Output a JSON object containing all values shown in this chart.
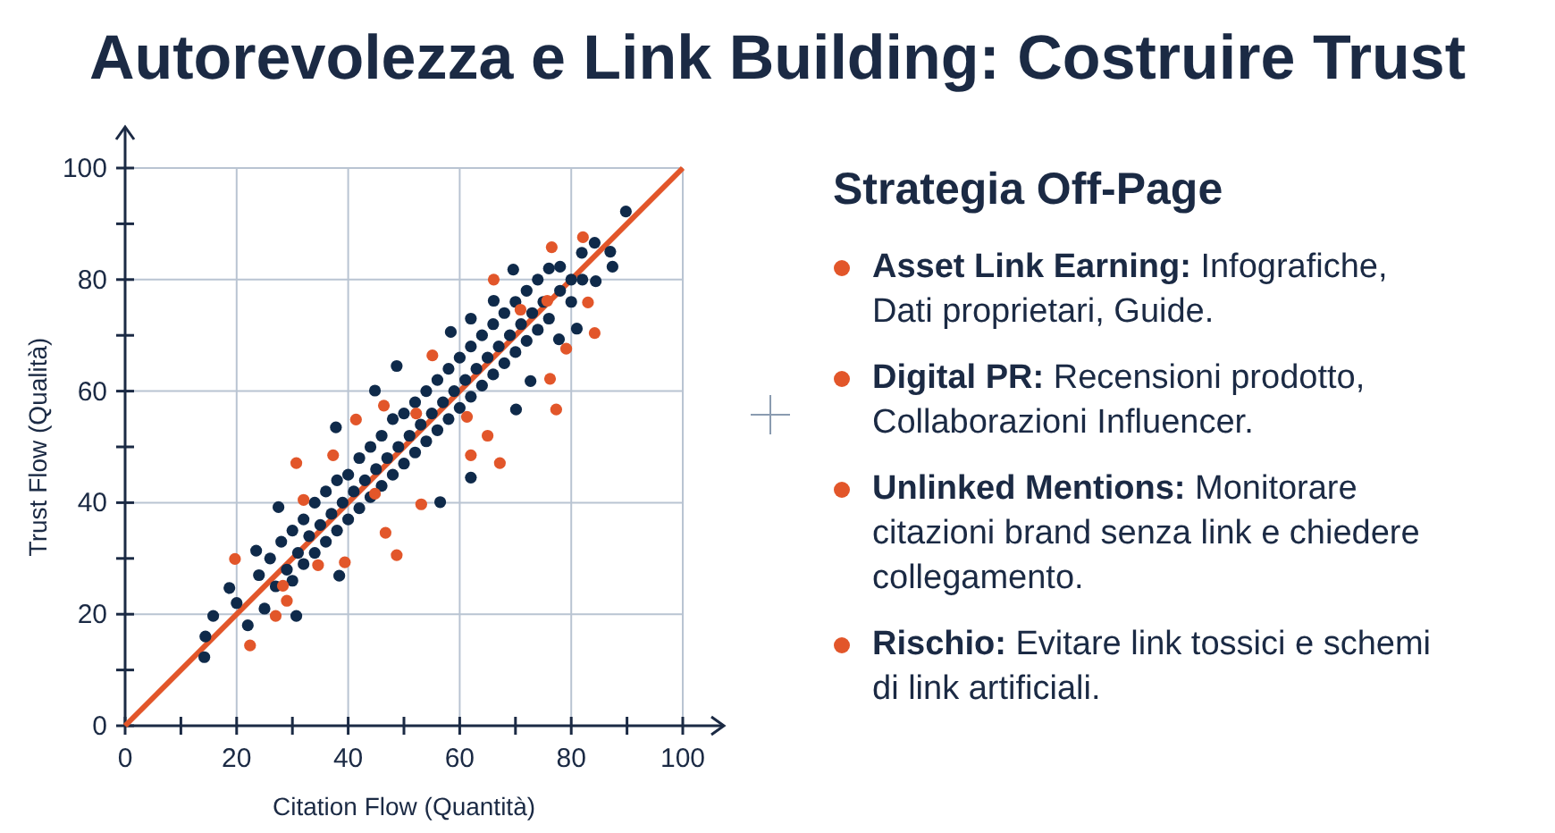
{
  "chart_data": [
    {
      "type": "scatter",
      "title": "Autorevolezza e Link Building: Costruire Trust",
      "xlabel": "Citation Flow (Quantità)",
      "ylabel": "Trust Flow (Qualità)",
      "xlim": [
        0,
        100
      ],
      "ylim": [
        0,
        100
      ],
      "xticks": [
        0,
        {
          "value": 10,
          "label": null
        },
        20,
        {
          "value": 30,
          "label": null
        },
        40,
        {
          "value": 50,
          "label": null
        },
        60,
        {
          "value": 70,
          "label": null
        },
        80,
        {
          "value": 90,
          "label": null
        },
        100
      ],
      "yticks": [
        0,
        {
          "value": 10,
          "label": null
        },
        20,
        {
          "value": 30,
          "label": null
        },
        40,
        {
          "value": 50,
          "label": null
        },
        60,
        {
          "value": 70,
          "label": null
        },
        80,
        {
          "value": 90,
          "label": null
        },
        100
      ],
      "grid": true,
      "series": [
        {
          "color": "#0f2a4a",
          "marker": "circle",
          "x": [
            89.8,
            87,
            87.4,
            81.9,
            84.2,
            84.4,
            81,
            69.6,
            66.1,
            62,
            58.4,
            48.7,
            44.8,
            37.8,
            27.5,
            23.5,
            18.7,
            15.8,
            14.2,
            14.4,
            30.7,
            38.4,
            56.5,
            62,
            70.1,
            72.7,
            77.8,
            78,
            20,
            22,
            24,
            25,
            26,
            27,
            28,
            29,
            30,
            30,
            31,
            32,
            32,
            33,
            34,
            34,
            35,
            36,
            36,
            37,
            38,
            38,
            39,
            40,
            40,
            41,
            42,
            42,
            43,
            44,
            44,
            45,
            46,
            46,
            47,
            48,
            48,
            49,
            50,
            50,
            51,
            52,
            52,
            53,
            54,
            54,
            55,
            56,
            56,
            57,
            58,
            58,
            59,
            60,
            60,
            61,
            62,
            62,
            63,
            64,
            64,
            65,
            66,
            66,
            67,
            68,
            68,
            69,
            70,
            70,
            71,
            72,
            72,
            73,
            74,
            74,
            75,
            76,
            76,
            78,
            80,
            80,
            82
          ],
          "values": [
            92.2,
            85,
            82.3,
            84.8,
            86.6,
            79.7,
            71.2,
            81.8,
            76.2,
            73,
            70.6,
            64.5,
            60.1,
            53.5,
            39.2,
            31.4,
            24.7,
            19.7,
            12.3,
            16,
            19.7,
            26.9,
            40.1,
            44.5,
            56.7,
            61.8,
            69.3,
            82.3,
            22,
            18,
            27,
            21,
            30,
            25,
            33,
            28,
            26,
            35,
            31,
            37,
            29,
            34,
            40,
            31,
            36,
            33,
            42,
            38,
            35,
            44,
            40,
            37,
            45,
            42,
            39,
            48,
            44,
            41,
            50,
            46,
            43,
            52,
            48,
            45,
            55,
            50,
            47,
            56,
            52,
            49,
            58,
            54,
            51,
            60,
            56,
            53,
            62,
            58,
            55,
            64,
            60,
            57,
            66,
            62,
            59,
            68,
            64,
            61,
            70,
            66,
            63,
            72,
            68,
            65,
            74,
            70,
            67,
            76,
            72,
            69,
            78,
            74,
            71,
            80,
            76,
            73,
            82,
            78,
            76,
            80,
            80
          ]
        },
        {
          "color": "#e2562a",
          "marker": "circle",
          "x": [
            82.1,
            76.5,
            66.1,
            84.2,
            79.1,
            77.3,
            76.2,
            67.2,
            62,
            55.1,
            46.4,
            41.4,
            30.7,
            37.3,
            53.1,
            48.7,
            46.7,
            39.4,
            19.7,
            22.4,
            27,
            29,
            28.3,
            32,
            70.9,
            75.7,
            83,
            61.3,
            44.8,
            34.6,
            52.2,
            65
          ],
          "values": [
            87.6,
            85.8,
            80,
            70.4,
            67.6,
            56.7,
            62.2,
            47.1,
            48.5,
            66.4,
            57.4,
            54.9,
            47.1,
            48.5,
            39.7,
            30.6,
            34.6,
            29.3,
            29.9,
            14.4,
            19.7,
            22.4,
            25.1,
            40.5,
            74.6,
            76.2,
            75.9,
            55.4,
            41.6,
            28.8,
            56,
            52
          ]
        },
        {
          "type": "line",
          "color": "#e2562a",
          "x": [
            0,
            100
          ],
          "values": [
            0,
            100
          ]
        }
      ]
    },
    {
      "type": "other",
      "title": "Strategia Off-Page",
      "annotations": [
        "Asset Link Earning: Infografiche, Dati proprietari, Guide.",
        "Digital PR: Recensioni prodotto, Collaborazioni Influencer.",
        "Unlinked Mentions: Monitorare citazioni brand senza link e chiedere collegamento.",
        "Rischio: Evitare link tossici e schemi di link artificiali."
      ]
    }
  ]
}
